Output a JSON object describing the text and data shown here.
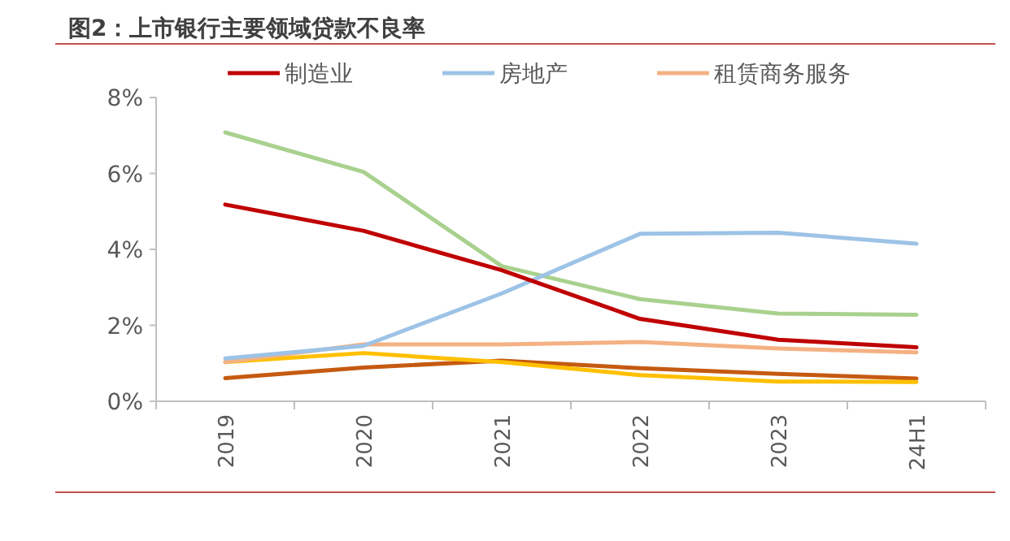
{
  "chart_data": {
    "type": "line",
    "title": "图2：上市银行主要领域贷款不良率",
    "categories": [
      "2019",
      "2020",
      "2021",
      "2022",
      "2023",
      "24H1"
    ],
    "ylim": [
      0,
      8
    ],
    "yticks": [
      {
        "value": 0,
        "label": "0%"
      },
      {
        "value": 2,
        "label": "2%"
      },
      {
        "value": 4,
        "label": "4%"
      },
      {
        "value": 6,
        "label": "6%"
      },
      {
        "value": 8,
        "label": "8%"
      }
    ],
    "grid": false,
    "legend": "top",
    "marker": "none",
    "series": [
      {
        "name": "制造业",
        "color": "#c00000",
        "values": [
          5.18,
          4.49,
          3.45,
          2.17,
          1.62,
          1.42
        ]
      },
      {
        "name": "房地产",
        "color": "#9dc3e6",
        "values": [
          1.13,
          1.46,
          2.84,
          4.41,
          4.44,
          4.15
        ]
      },
      {
        "name": "租赁商务服务",
        "color": "#f4b183",
        "values": [
          1.03,
          1.5,
          1.5,
          1.56,
          1.39,
          1.29
        ]
      },
      {
        "color": "#a9d18e",
        "values": [
          7.08,
          6.04,
          3.56,
          2.69,
          2.31,
          2.28
        ]
      },
      {
        "color": "#ffc000",
        "values": [
          1.03,
          1.27,
          1.03,
          0.69,
          0.52,
          0.51
        ]
      },
      {
        "color": "#c55a11",
        "values": [
          0.61,
          0.89,
          1.07,
          0.87,
          0.72,
          0.6
        ]
      }
    ]
  }
}
